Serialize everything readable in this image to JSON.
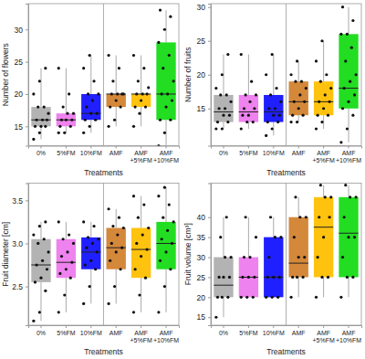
{
  "chart_data": [
    {
      "type": "box",
      "x_label": "Treatments",
      "y_label": "Number of flowers",
      "categories": [
        "0%",
        "5%FM",
        "10%FM",
        "AMF",
        "AMF\n+5%FM",
        "AMF\n+10%FM"
      ],
      "colors": [
        "#b3b3b3",
        "#ee82ee",
        "#1f1fff",
        "#d4883a",
        "#ffc20e",
        "#22dd22"
      ],
      "ylim": [
        12,
        34
      ],
      "yticks": [
        15,
        20,
        25,
        30
      ],
      "grid": false,
      "boxes": [
        {
          "low": 13,
          "q1": 15,
          "median": 16,
          "q3": 18,
          "high": 24,
          "points": [
            13,
            14,
            15,
            15,
            15,
            16,
            16,
            16,
            17,
            18,
            18,
            20,
            22,
            24
          ]
        },
        {
          "low": 14,
          "q1": 15,
          "median": 16,
          "q3": 17,
          "high": 24,
          "points": [
            14,
            14,
            15,
            15,
            16,
            16,
            16,
            17,
            17,
            18,
            20,
            24
          ]
        },
        {
          "low": 14,
          "q1": 16,
          "median": 17,
          "q3": 20,
          "high": 26,
          "points": [
            14,
            15,
            16,
            16,
            17,
            17,
            18,
            19,
            20,
            20,
            22,
            24,
            26
          ]
        },
        {
          "low": 15,
          "q1": 18,
          "median": 20,
          "q3": 20,
          "high": 26,
          "points": [
            15,
            16,
            18,
            18,
            19,
            20,
            20,
            20,
            20,
            22,
            24,
            26
          ]
        },
        {
          "low": 15,
          "q1": 18,
          "median": 20,
          "q3": 20,
          "high": 26,
          "points": [
            15,
            17,
            18,
            18,
            19,
            20,
            20,
            20,
            21,
            22,
            24,
            26
          ]
        },
        {
          "low": 12,
          "q1": 16,
          "median": 20,
          "q3": 28,
          "high": 33,
          "points": [
            12,
            14,
            16,
            16,
            18,
            19,
            20,
            20,
            22,
            24,
            26,
            28,
            30,
            32,
            33
          ]
        }
      ]
    },
    {
      "type": "box",
      "x_label": "Treatments",
      "y_label": "Number of fruits",
      "categories": [
        "0%",
        "5%FM",
        "10%FM",
        "AMF",
        "AMF\n+5%FM",
        "AMF\n+10%FM"
      ],
      "colors": [
        "#b3b3b3",
        "#ee82ee",
        "#1f1fff",
        "#d4883a",
        "#ffc20e",
        "#22dd22"
      ],
      "ylim": [
        9.5,
        30.5
      ],
      "yticks": [
        15,
        20,
        25,
        30
      ],
      "grid": false,
      "boxes": [
        {
          "low": 12,
          "q1": 13,
          "median": 14.5,
          "q3": 17,
          "high": 23,
          "points": [
            12,
            12,
            13,
            13,
            14,
            14,
            15,
            15,
            16,
            17,
            17,
            18,
            20,
            23
          ]
        },
        {
          "low": 12,
          "q1": 13,
          "median": 14.5,
          "q3": 17,
          "high": 23,
          "points": [
            12,
            13,
            13,
            14,
            14,
            15,
            15,
            16,
            17,
            17,
            19,
            23
          ]
        },
        {
          "low": 11,
          "q1": 13,
          "median": 14.5,
          "q3": 17,
          "high": 23,
          "points": [
            11,
            12,
            13,
            13,
            14,
            14,
            15,
            15,
            16,
            17,
            18,
            20,
            23
          ]
        },
        {
          "low": 13,
          "q1": 14,
          "median": 16,
          "q3": 19,
          "high": 22,
          "points": [
            13,
            13,
            14,
            14,
            15,
            16,
            16,
            17,
            18,
            19,
            19,
            20,
            22
          ]
        },
        {
          "low": 12,
          "q1": 14,
          "median": 16,
          "q3": 19,
          "high": 25,
          "points": [
            12,
            13,
            14,
            14,
            15,
            16,
            16,
            17,
            18,
            19,
            20,
            22,
            25
          ]
        },
        {
          "low": 10,
          "q1": 15,
          "median": 18,
          "q3": 26,
          "high": 30,
          "points": [
            10,
            12,
            14,
            15,
            16,
            17,
            18,
            19,
            20,
            22,
            24,
            26,
            26,
            28,
            30
          ]
        }
      ]
    },
    {
      "type": "box",
      "x_label": "Treatments",
      "y_label": "Fruit diameter [cm]",
      "categories": [
        "0%",
        "5%FM",
        "10%FM",
        "AMF",
        "AMF\n+5%FM",
        "AMF\n+10%FM"
      ],
      "colors": [
        "#b3b3b3",
        "#ee82ee",
        "#1f1fff",
        "#d4883a",
        "#ffc20e",
        "#22dd22"
      ],
      "ylim": [
        2.05,
        3.7
      ],
      "yticks": [
        2.5,
        {
          "value": 3,
          "label": "3.0"
        },
        3.5
      ],
      "grid": false,
      "boxes": [
        {
          "low": 2.1,
          "q1": 2.55,
          "median": 2.75,
          "q3": 3.05,
          "high": 3.25,
          "points": [
            2.1,
            2.2,
            2.45,
            2.55,
            2.6,
            2.7,
            2.75,
            2.8,
            2.9,
            3.0,
            3.05,
            3.1,
            3.2,
            3.25
          ]
        },
        {
          "low": 2.2,
          "q1": 2.6,
          "median": 2.78,
          "q3": 3.05,
          "high": 3.25,
          "points": [
            2.2,
            2.4,
            2.6,
            2.65,
            2.7,
            2.78,
            2.85,
            2.9,
            3.0,
            3.05,
            3.1,
            3.25
          ]
        },
        {
          "low": 2.3,
          "q1": 2.7,
          "median": 2.9,
          "q3": 3.07,
          "high": 3.25,
          "points": [
            2.3,
            2.5,
            2.7,
            2.75,
            2.8,
            2.9,
            2.95,
            3.0,
            3.05,
            3.07,
            3.2,
            3.25
          ]
        },
        {
          "low": 2.3,
          "q1": 2.7,
          "median": 2.95,
          "q3": 3.18,
          "high": 3.4,
          "points": [
            2.3,
            2.5,
            2.7,
            2.8,
            2.9,
            2.95,
            3.0,
            3.1,
            3.18,
            3.2,
            3.3,
            3.4
          ]
        },
        {
          "low": 2.2,
          "q1": 2.6,
          "median": 2.93,
          "q3": 3.18,
          "high": 3.55,
          "points": [
            2.2,
            2.4,
            2.6,
            2.7,
            2.85,
            2.93,
            3.0,
            3.1,
            3.18,
            3.3,
            3.45,
            3.55
          ]
        },
        {
          "low": 2.2,
          "q1": 2.7,
          "median": 3.0,
          "q3": 3.25,
          "high": 3.65,
          "points": [
            2.2,
            2.5,
            2.7,
            2.8,
            2.9,
            3.0,
            3.05,
            3.15,
            3.25,
            3.3,
            3.45,
            3.55,
            3.65
          ]
        }
      ]
    },
    {
      "type": "box",
      "x_label": "Treatments",
      "y_label": "Fruit volume [cm³]",
      "categories": [
        "0%",
        "5%FM",
        "10%FM",
        "AMF",
        "AMF\n+5%FM",
        "AMF\n+10%FM"
      ],
      "colors": [
        "#b3b3b3",
        "#ee82ee",
        "#1f1fff",
        "#d4883a",
        "#ffc20e",
        "#22dd22"
      ],
      "ylim": [
        13,
        48.5
      ],
      "yticks": [
        15,
        20,
        25,
        30,
        35,
        40
      ],
      "grid": false,
      "boxes": [
        {
          "low": 15,
          "q1": 20,
          "median": 23,
          "q3": 30,
          "high": 40,
          "points": [
            15,
            20,
            20,
            20,
            25,
            25,
            25,
            30,
            30,
            35,
            40
          ]
        },
        {
          "low": 20,
          "q1": 20,
          "median": 25,
          "q3": 30,
          "high": 40,
          "points": [
            20,
            20,
            20,
            25,
            25,
            25,
            30,
            30,
            35,
            40
          ]
        },
        {
          "low": 20,
          "q1": 20,
          "median": 25,
          "q3": 35,
          "high": 40,
          "points": [
            20,
            20,
            20,
            25,
            25,
            25,
            30,
            35,
            35,
            40
          ]
        },
        {
          "low": 20,
          "q1": 25,
          "median": 28.5,
          "q3": 40,
          "high": 45,
          "points": [
            20,
            25,
            25,
            25,
            30,
            30,
            35,
            40,
            40,
            45
          ]
        },
        {
          "low": 20,
          "q1": 25,
          "median": 37.5,
          "q3": 45,
          "high": 48,
          "points": [
            20,
            25,
            25,
            30,
            35,
            40,
            40,
            45,
            45,
            48
          ]
        },
        {
          "low": 20,
          "q1": 25,
          "median": 36,
          "q3": 45,
          "high": 48,
          "points": [
            20,
            25,
            25,
            30,
            35,
            35,
            40,
            45,
            45,
            48
          ]
        }
      ]
    }
  ]
}
